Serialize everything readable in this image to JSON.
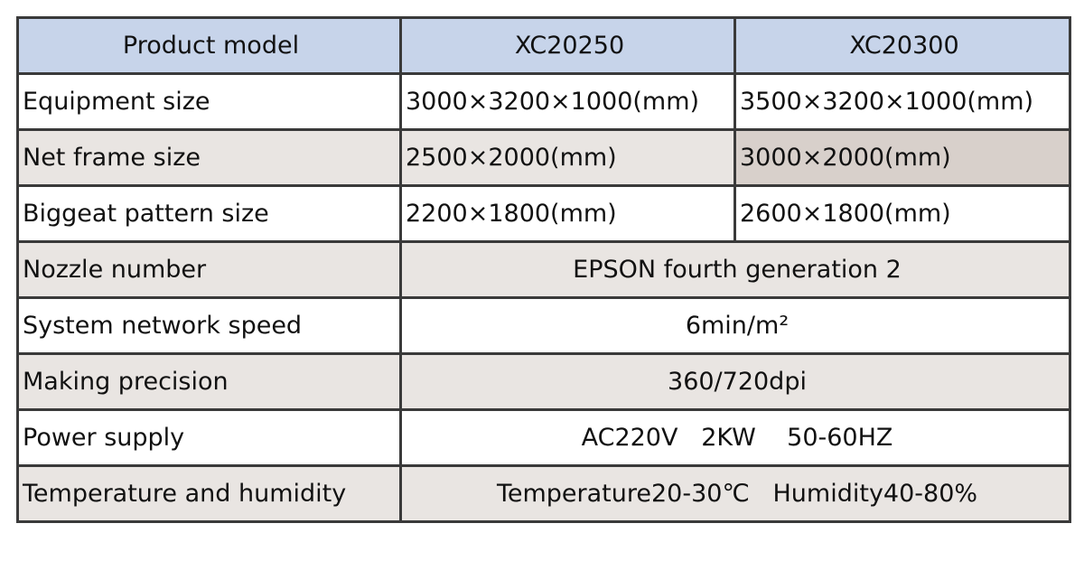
{
  "table": {
    "header": [
      "Product model",
      "XC20250",
      "XC20300"
    ],
    "rows": [
      [
        "Equipment size",
        "3000×3200×1000(mm)",
        "3500×3200×1000(mm)"
      ],
      [
        "Net frame size",
        "2500×2000(mm)",
        "3000×2000(mm)"
      ],
      [
        "Biggeat pattern size",
        "2200×1800(mm)",
        "2600×1800(mm)"
      ],
      [
        "Nozzle number",
        "EPSON fourth generation 2"
      ],
      [
        "System network speed",
        "6min/m²"
      ],
      [
        "Making precision",
        "360/720dpi"
      ],
      [
        "Power supply",
        "AC220V   2KW    50-60HZ"
      ],
      [
        "Temperature and humidity",
        "Temperature20-30℃   Humidity40-80%"
      ]
    ]
  }
}
